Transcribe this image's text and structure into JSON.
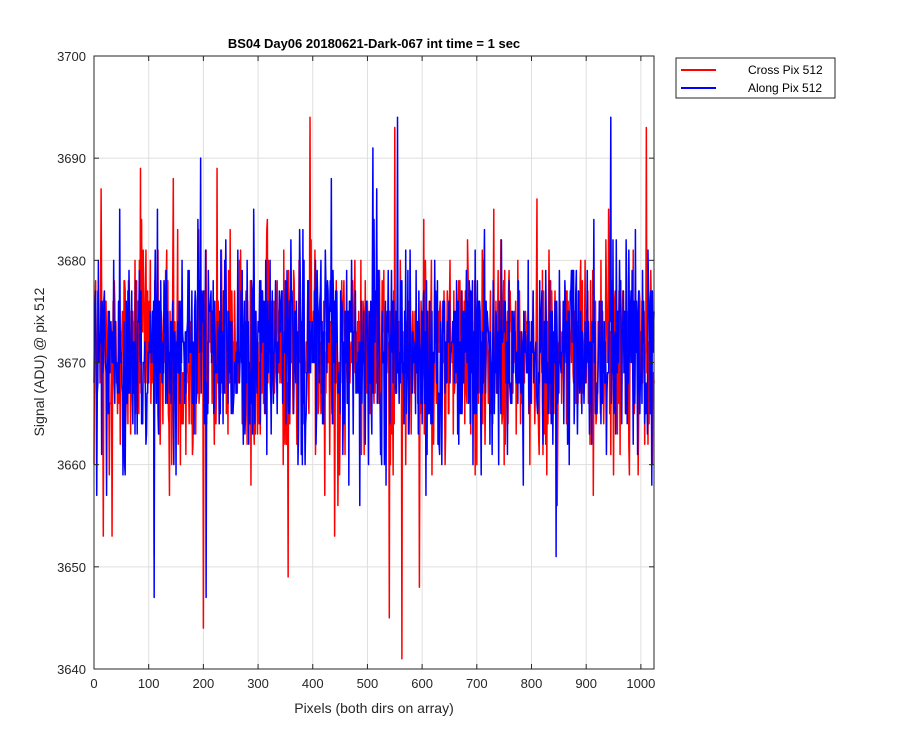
{
  "chart_data": {
    "type": "line",
    "title": "BS04 Day06 20180621-Dark-067 int time = 1 sec",
    "xlabel": "Pixels (both dirs on array)",
    "ylabel": "Signal (ADU) @ pix 512",
    "xlim": [
      0,
      1024
    ],
    "ylim": [
      3640,
      3700
    ],
    "x_ticks": [
      0,
      100,
      200,
      300,
      400,
      500,
      600,
      700,
      800,
      900,
      1000
    ],
    "y_ticks": [
      3640,
      3650,
      3660,
      3670,
      3680,
      3690,
      3700
    ],
    "grid": true,
    "legend_position": "outside-top-right",
    "series": [
      {
        "name": "Cross Pix 512",
        "color": "#ff0000",
        "mean": 3671,
        "values_note_excluded": false,
        "key_points": [
          {
            "x": 0,
            "y": 3660
          },
          {
            "x": 13,
            "y": 3687
          },
          {
            "x": 17,
            "y": 3653
          },
          {
            "x": 33,
            "y": 3653
          },
          {
            "x": 85,
            "y": 3689
          },
          {
            "x": 110,
            "y": 3651
          },
          {
            "x": 145,
            "y": 3688
          },
          {
            "x": 200,
            "y": 3644
          },
          {
            "x": 225,
            "y": 3689
          },
          {
            "x": 355,
            "y": 3649
          },
          {
            "x": 395,
            "y": 3694
          },
          {
            "x": 440,
            "y": 3653
          },
          {
            "x": 540,
            "y": 3645
          },
          {
            "x": 550,
            "y": 3693
          },
          {
            "x": 563,
            "y": 3641
          },
          {
            "x": 595,
            "y": 3648
          },
          {
            "x": 1010,
            "y": 3693
          }
        ]
      },
      {
        "name": "Along Pix 512",
        "color": "#0000ff",
        "mean": 3671,
        "key_points": [
          {
            "x": 5,
            "y": 3657
          },
          {
            "x": 110,
            "y": 3647
          },
          {
            "x": 195,
            "y": 3690
          },
          {
            "x": 205,
            "y": 3647
          },
          {
            "x": 510,
            "y": 3691
          },
          {
            "x": 555,
            "y": 3694
          },
          {
            "x": 845,
            "y": 3651
          },
          {
            "x": 945,
            "y": 3694
          },
          {
            "x": 1020,
            "y": 3658
          }
        ]
      }
    ]
  }
}
